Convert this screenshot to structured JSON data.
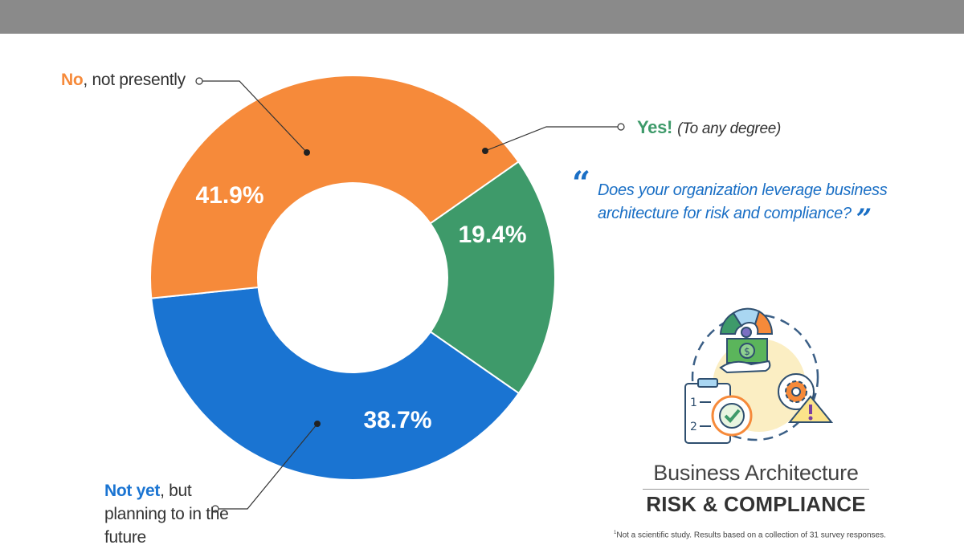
{
  "chart_data": {
    "type": "pie",
    "donut": true,
    "categories": [
      "Yes! (To any degree)",
      "Not yet, but planning to in the future",
      "No, not presently"
    ],
    "values": [
      19.4,
      38.7,
      41.9
    ],
    "value_labels": [
      "19.4%",
      "38.7%",
      "41.9%"
    ],
    "colors": [
      "#3e9a6a",
      "#1a74d2",
      "#f68a3a"
    ]
  },
  "labels": {
    "no_key": "No",
    "no_rest": ", not presently",
    "yes_key": "Yes!",
    "yes_rest": "(To any degree)",
    "notyet_key": "Not yet",
    "notyet_rest": ", but planning to in the future"
  },
  "question": {
    "text": "Does your organization leverage business architecture for risk and compliance?",
    "open_quote": "“",
    "close_quote": "”"
  },
  "brand": {
    "title": "Business Architecture",
    "subtitle": "RISK & COMPLIANCE"
  },
  "footnote": {
    "marker": "1",
    "text": "Not a scientific study. Results based on a collection of 31 survey responses."
  },
  "icons": [
    "money-hand-icon",
    "gauge-icon",
    "clipboard-checklist-icon",
    "target-check-icon",
    "gear-icon",
    "warning-icon"
  ]
}
